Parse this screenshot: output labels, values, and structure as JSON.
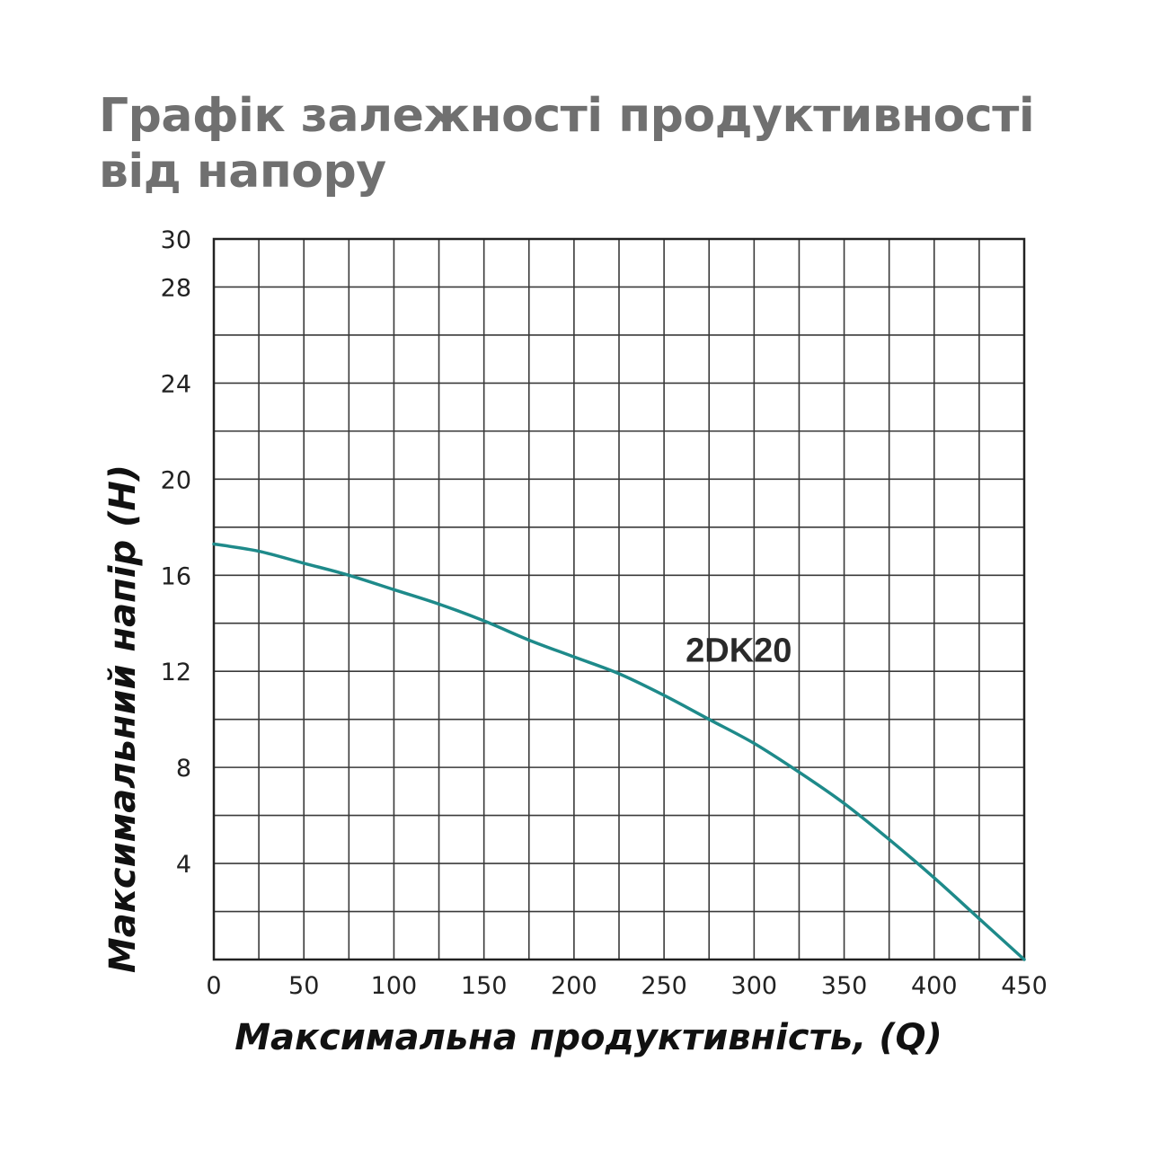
{
  "chart_data": {
    "type": "line",
    "title": "Графік залежності продуктивності від напору",
    "xlabel": "Максимальна продуктивність, (Q)",
    "ylabel": "Максимальний напір (H)",
    "xlim": [
      0,
      450
    ],
    "ylim": [
      0,
      30
    ],
    "x_ticks": [
      0,
      50,
      100,
      150,
      200,
      250,
      300,
      350,
      400,
      450
    ],
    "x_tick_labels": [
      "0",
      "50",
      "100",
      "150",
      "200",
      "250",
      "300",
      "350",
      "400",
      "450"
    ],
    "x_grid_step": 25,
    "y_ticks": [
      4,
      8,
      12,
      16,
      20,
      24,
      28,
      30
    ],
    "y_tick_labels": [
      "4",
      "8",
      "12",
      "16",
      "20",
      "24",
      "28",
      "30"
    ],
    "y_grid_step": 2,
    "grid": true,
    "legend": "none",
    "series": [
      {
        "name": "2DK20",
        "color": "#1e8a8a",
        "x": [
          0,
          25,
          50,
          75,
          100,
          125,
          150,
          175,
          200,
          225,
          250,
          275,
          300,
          325,
          350,
          375,
          400,
          425,
          450
        ],
        "y": [
          17.3,
          17.0,
          16.5,
          16.0,
          15.4,
          14.8,
          14.1,
          13.3,
          12.6,
          11.9,
          11.0,
          10.0,
          9.0,
          7.8,
          6.5,
          5.0,
          3.4,
          1.7,
          0.0
        ]
      }
    ]
  }
}
